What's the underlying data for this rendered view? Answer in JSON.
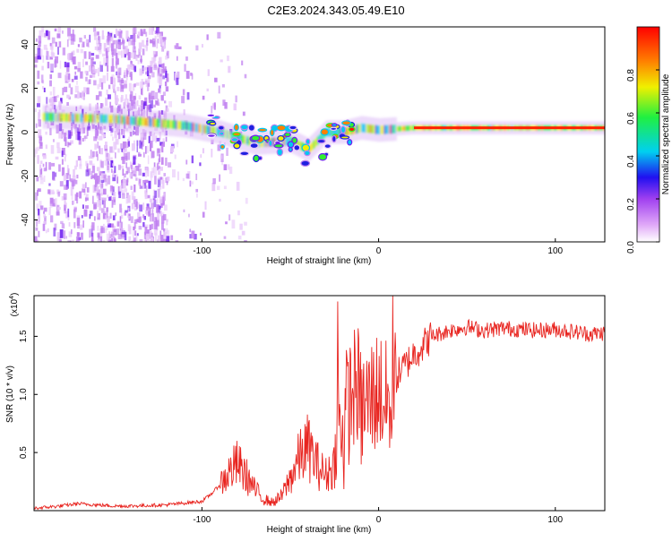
{
  "title": "C2E3.2024.343.05.49.E10",
  "colors": {
    "snr_line": "#e8241f",
    "frame": "#000000",
    "background": "#ffffff"
  },
  "chart_data": [
    {
      "type": "heatmap",
      "xlabel": "Height of straight line (km)",
      "ylabel": "Frequency (Hz)",
      "xlim": [
        -195,
        128
      ],
      "ylim": [
        -50,
        48
      ],
      "xticks": [
        -100,
        0,
        100
      ],
      "yticks": [
        -40,
        -20,
        0,
        20,
        40
      ],
      "colorbar": {
        "label": "Normalized spectral amplitude",
        "range": [
          0,
          1
        ],
        "ticks": [
          0.0,
          0.2,
          0.4,
          0.6,
          0.8
        ],
        "tick_labels": [
          "0.0",
          "0.2",
          "0.4",
          "0.6",
          "0.8"
        ],
        "colormap": [
          "#ffffff",
          "#d070f0",
          "#3010f0",
          "#00d8f0",
          "#20f040",
          "#f0f000",
          "#ff8000",
          "#ff0000"
        ],
        "placement": "right"
      },
      "ridge": {
        "description_points_x": [
          -190,
          -150,
          -110,
          -90,
          -70,
          -50,
          -40,
          -30,
          -20,
          -10,
          0,
          20,
          60,
          128
        ],
        "frequency_hz": [
          7,
          6,
          3,
          0,
          -5,
          -4,
          -8,
          0,
          0,
          2,
          1,
          2,
          2,
          2
        ]
      }
    },
    {
      "type": "line",
      "xlabel": "Height of straight line (km)",
      "ylabel": "SNR (10 * v/v)",
      "multiplier_label": "(x10",
      "multiplier_exp": "4",
      "xlim": [
        -195,
        128
      ],
      "ylim": [
        0,
        1.85
      ],
      "xticks": [
        -100,
        0,
        100
      ],
      "yticks": [
        0.5,
        1.0,
        1.5
      ],
      "ytick_labels": [
        "0.5",
        "1.0",
        "1.5"
      ],
      "series": [
        {
          "x": [
            -195,
            -180,
            -170,
            -160,
            -150,
            -140,
            -120,
            -100,
            -95,
            -90,
            -85,
            -80,
            -75,
            -70,
            -65,
            -60,
            -55,
            -50,
            -45,
            -40,
            -35,
            -30,
            -25,
            -22,
            -20,
            -18,
            -15,
            -12,
            -10,
            -5,
            0,
            5,
            10,
            15,
            20,
            25,
            30,
            40,
            50,
            60,
            70,
            80,
            90,
            100,
            110,
            120,
            128
          ],
          "y": [
            0.02,
            0.04,
            0.06,
            0.05,
            0.04,
            0.04,
            0.05,
            0.08,
            0.14,
            0.22,
            0.32,
            0.4,
            0.3,
            0.18,
            0.1,
            0.07,
            0.12,
            0.28,
            0.45,
            0.55,
            0.4,
            0.3,
            0.4,
            1.02,
            0.6,
            0.9,
            1.0,
            1.1,
            0.85,
            0.95,
            1.05,
            0.9,
            1.15,
            1.25,
            1.35,
            1.42,
            1.5,
            1.55,
            1.58,
            1.55,
            1.57,
            1.56,
            1.55,
            1.56,
            1.54,
            1.52,
            1.53
          ]
        }
      ]
    }
  ]
}
